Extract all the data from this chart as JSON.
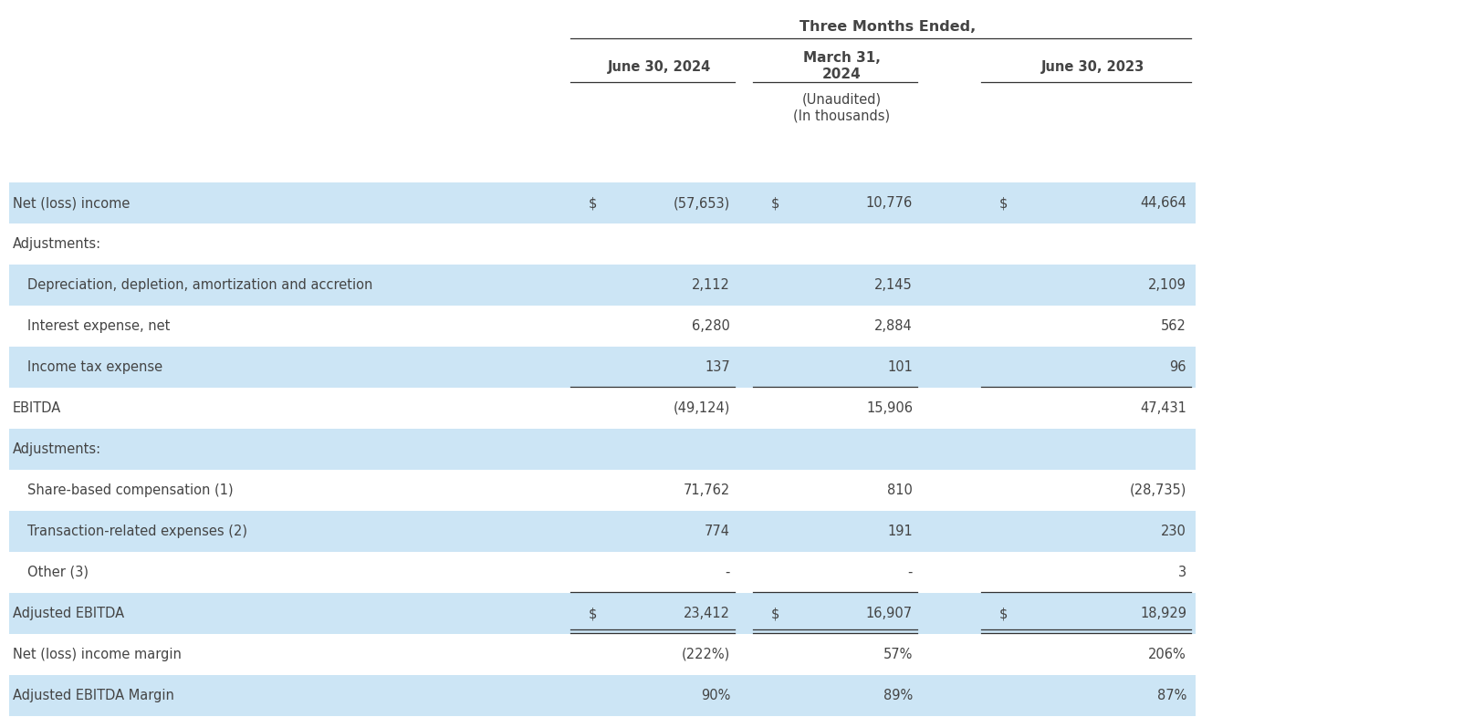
{
  "title": "Three Months Ended,",
  "col1_label": "June 30, 2024",
  "col2_label_line1": "March 31,",
  "col2_label_line2": "2024",
  "col2_unaudited": "(Unaudited)",
  "col2_thousands": "(In thousands)",
  "col3_label": "June 30, 2023",
  "rows": [
    {
      "label": "Net (loss) income",
      "indent": 0,
      "bold": false,
      "bg": "#cce5f5",
      "dollar1": "$",
      "val1": "(57,653)",
      "dollar2": "$",
      "val2": "10,776",
      "dollar3": "$",
      "val3": "44,664",
      "single_line_below": false,
      "double_line_below": false
    },
    {
      "label": "Adjustments:",
      "indent": 0,
      "bold": false,
      "bg": "#ffffff",
      "dollar1": "",
      "val1": "",
      "dollar2": "",
      "val2": "",
      "dollar3": "",
      "val3": "",
      "single_line_below": false,
      "double_line_below": false
    },
    {
      "label": "Depreciation, depletion, amortization and accretion",
      "indent": 1,
      "bold": false,
      "bg": "#cce5f5",
      "dollar1": "",
      "val1": "2,112",
      "dollar2": "",
      "val2": "2,145",
      "dollar3": "",
      "val3": "2,109",
      "single_line_below": false,
      "double_line_below": false
    },
    {
      "label": "Interest expense, net",
      "indent": 1,
      "bold": false,
      "bg": "#ffffff",
      "dollar1": "",
      "val1": "6,280",
      "dollar2": "",
      "val2": "2,884",
      "dollar3": "",
      "val3": "562",
      "single_line_below": false,
      "double_line_below": false
    },
    {
      "label": "Income tax expense",
      "indent": 1,
      "bold": false,
      "bg": "#cce5f5",
      "dollar1": "",
      "val1": "137",
      "dollar2": "",
      "val2": "101",
      "dollar3": "",
      "val3": "96",
      "single_line_below": true,
      "double_line_below": false
    },
    {
      "label": "EBITDA",
      "indent": 0,
      "bold": false,
      "bg": "#ffffff",
      "dollar1": "",
      "val1": "(49,124)",
      "dollar2": "",
      "val2": "15,906",
      "dollar3": "",
      "val3": "47,431",
      "single_line_below": false,
      "double_line_below": false
    },
    {
      "label": "Adjustments:",
      "indent": 0,
      "bold": false,
      "bg": "#cce5f5",
      "dollar1": "",
      "val1": "",
      "dollar2": "",
      "val2": "",
      "dollar3": "",
      "val3": "",
      "single_line_below": false,
      "double_line_below": false
    },
    {
      "label": "Share-based compensation (1)",
      "indent": 1,
      "bold": false,
      "bg": "#ffffff",
      "dollar1": "",
      "val1": "71,762",
      "dollar2": "",
      "val2": "810",
      "dollar3": "",
      "val3": "(28,735)",
      "single_line_below": false,
      "double_line_below": false
    },
    {
      "label": "Transaction-related expenses (2)",
      "indent": 1,
      "bold": false,
      "bg": "#cce5f5",
      "dollar1": "",
      "val1": "774",
      "dollar2": "",
      "val2": "191",
      "dollar3": "",
      "val3": "230",
      "single_line_below": false,
      "double_line_below": false
    },
    {
      "label": "Other (3)",
      "indent": 1,
      "bold": false,
      "bg": "#ffffff",
      "dollar1": "",
      "val1": "-",
      "dollar2": "",
      "val2": "-",
      "dollar3": "",
      "val3": "3",
      "single_line_below": true,
      "double_line_below": false
    },
    {
      "label": "Adjusted EBITDA",
      "indent": 0,
      "bold": false,
      "bg": "#cce5f5",
      "dollar1": "$",
      "val1": "23,412",
      "dollar2": "$",
      "val2": "16,907",
      "dollar3": "$",
      "val3": "18,929",
      "single_line_below": false,
      "double_line_below": true
    },
    {
      "label": "Net (loss) income margin",
      "indent": 0,
      "bold": false,
      "bg": "#ffffff",
      "dollar1": "",
      "val1": "(222%)",
      "dollar2": "",
      "val2": "57%",
      "dollar3": "",
      "val3": "206%",
      "single_line_below": false,
      "double_line_below": false
    },
    {
      "label": "Adjusted EBITDA Margin",
      "indent": 0,
      "bold": false,
      "bg": "#cce5f5",
      "dollar1": "",
      "val1": "90%",
      "dollar2": "",
      "val2": "89%",
      "dollar3": "",
      "val3": "87%",
      "single_line_below": false,
      "double_line_below": false
    }
  ],
  "font_size": 10.5,
  "header_font_size": 10.5,
  "line_color": "#333333",
  "text_color": "#444444"
}
